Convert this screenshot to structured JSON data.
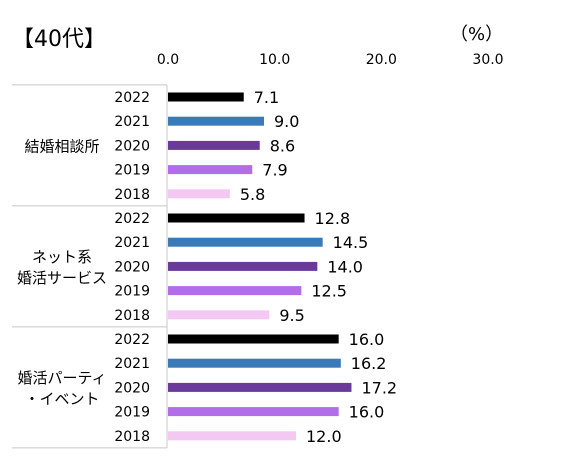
{
  "chart_data": {
    "type": "bar",
    "orientation": "horizontal",
    "title": "【40代】",
    "unit_label": "（%）",
    "xlim": [
      0,
      30
    ],
    "xticks": [
      "0.0",
      "10.0",
      "20.0",
      "30.0"
    ],
    "year_colors": {
      "2022": "#000000",
      "2021": "#3a7ab8",
      "2020": "#6a3a9a",
      "2019": "#b16ee8",
      "2018": "#f3c9f4"
    },
    "groups": [
      {
        "label": "結婚相談所",
        "label_lines": [
          "結婚相談所"
        ],
        "bars": [
          {
            "year": "2022",
            "value": 7.1,
            "text": "7.1"
          },
          {
            "year": "2021",
            "value": 9.0,
            "text": "9.0"
          },
          {
            "year": "2020",
            "value": 8.6,
            "text": "8.6"
          },
          {
            "year": "2019",
            "value": 7.9,
            "text": "7.9"
          },
          {
            "year": "2018",
            "value": 5.8,
            "text": "5.8"
          }
        ]
      },
      {
        "label": "ネット系婚活サービス",
        "label_lines": [
          "ネット系",
          "婚活サービス"
        ],
        "bars": [
          {
            "year": "2022",
            "value": 12.8,
            "text": "12.8"
          },
          {
            "year": "2021",
            "value": 14.5,
            "text": "14.5"
          },
          {
            "year": "2020",
            "value": 14.0,
            "text": "14.0"
          },
          {
            "year": "2019",
            "value": 12.5,
            "text": "12.5"
          },
          {
            "year": "2018",
            "value": 9.5,
            "text": "9.5"
          }
        ]
      },
      {
        "label": "婚活パーティ・イベント",
        "label_lines": [
          "婚活パーティ",
          "・イベント"
        ],
        "bars": [
          {
            "year": "2022",
            "value": 16.0,
            "text": "16.0"
          },
          {
            "year": "2021",
            "value": 16.2,
            "text": "16.2"
          },
          {
            "year": "2020",
            "value": 17.2,
            "text": "17.2"
          },
          {
            "year": "2019",
            "value": 16.0,
            "text": "16.0"
          },
          {
            "year": "2018",
            "value": 12.0,
            "text": "12.0"
          }
        ]
      }
    ]
  }
}
